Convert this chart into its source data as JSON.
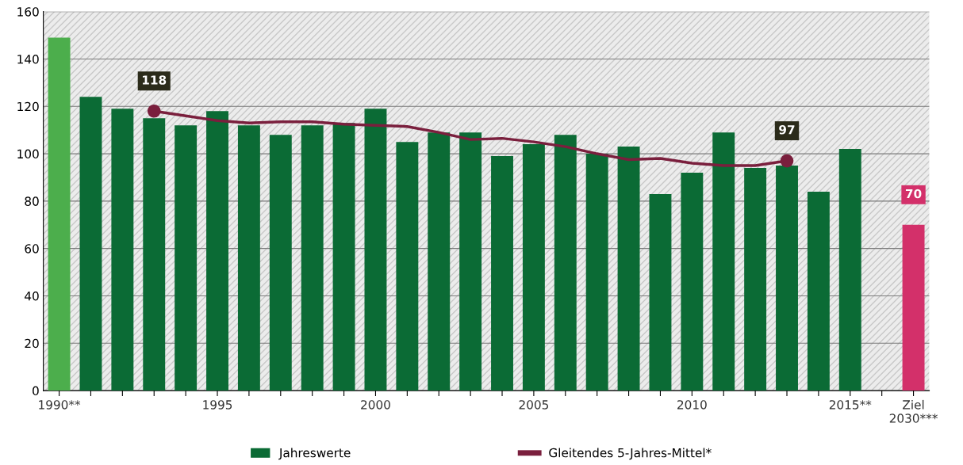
{
  "chart_data": {
    "type": "bar",
    "categories": [
      "1990**",
      null,
      null,
      null,
      null,
      "1995",
      null,
      null,
      null,
      null,
      "2000",
      null,
      null,
      null,
      null,
      "2005",
      null,
      null,
      null,
      null,
      "2010",
      null,
      null,
      null,
      null,
      "2015**",
      null,
      "Ziel\n2030***"
    ],
    "series": [
      {
        "name": "Jahreswerte",
        "color": "#0b6b35",
        "values": [
          149,
          124,
          119,
          115,
          112,
          118,
          112,
          108,
          112,
          113,
          119,
          105,
          109,
          109,
          99,
          104,
          108,
          100,
          103,
          83,
          92,
          109,
          94,
          95,
          84,
          102,
          null,
          70
        ],
        "colors": [
          "#4cae4c",
          "#0b6b35",
          "#0b6b35",
          "#0b6b35",
          "#0b6b35",
          "#0b6b35",
          "#0b6b35",
          "#0b6b35",
          "#0b6b35",
          "#0b6b35",
          "#0b6b35",
          "#0b6b35",
          "#0b6b35",
          "#0b6b35",
          "#0b6b35",
          "#0b6b35",
          "#0b6b35",
          "#0b6b35",
          "#0b6b35",
          "#0b6b35",
          "#0b6b35",
          "#0b6b35",
          "#0b6b35",
          "#0b6b35",
          "#0b6b35",
          "#0b6b35",
          "#0b6b35",
          "#d3306a"
        ],
        "value_labels": [
          null,
          null,
          null,
          null,
          null,
          null,
          null,
          null,
          null,
          null,
          null,
          null,
          null,
          null,
          null,
          null,
          null,
          null,
          null,
          null,
          null,
          null,
          null,
          null,
          null,
          null,
          null,
          "70"
        ]
      },
      {
        "name": "Gleitendes 5-Jahres-Mittel*",
        "type": "line",
        "color": "#7a1f3d",
        "values": [
          null,
          null,
          null,
          118,
          116,
          114,
          113,
          113.5,
          113.5,
          112.5,
          112,
          111.5,
          109,
          106,
          106.5,
          105,
          103,
          100,
          97.5,
          98,
          96,
          95,
          95,
          97,
          null,
          null,
          null,
          null
        ],
        "value_labels": [
          null,
          null,
          null,
          "118",
          null,
          null,
          null,
          null,
          null,
          null,
          null,
          null,
          null,
          null,
          null,
          null,
          null,
          null,
          null,
          null,
          null,
          null,
          null,
          "97",
          null,
          null,
          null,
          null
        ]
      }
    ],
    "ylim": [
      0,
      160
    ],
    "yticks": [
      0,
      20,
      40,
      60,
      80,
      100,
      120,
      140,
      160
    ],
    "grid": "y",
    "legend": "bottom"
  }
}
